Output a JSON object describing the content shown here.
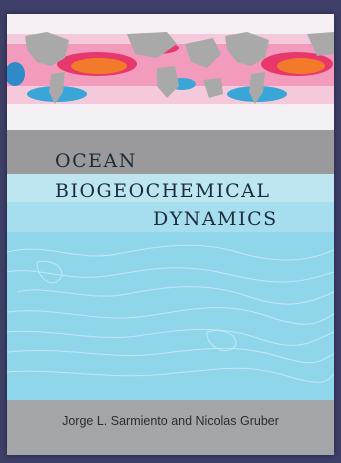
{
  "cover": {
    "title_line_1": "OCEAN",
    "title_line_2": "BIOGEOCHEMICAL",
    "title_line_3": "DYNAMICS",
    "authors": "Jorge L. Sarmiento and Nicolas Gruber"
  },
  "colors": {
    "frame": "#3f4069",
    "water": "#8fd6ea",
    "grey_band": "#9a9a9d",
    "title_band": "#bde6f1",
    "author_band": "#a3a5a8",
    "map_land": "#a9a9a9",
    "map_high": "#e8386b",
    "map_hot": "#f37a2a"
  }
}
